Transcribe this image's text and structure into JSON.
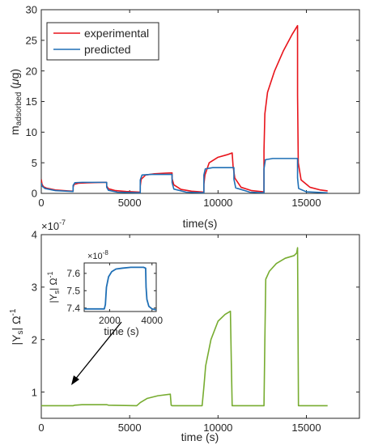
{
  "colors": {
    "experimental": "#e8141b",
    "predicted": "#1f6fb5",
    "admittance": "#77ac30",
    "axis": "#262626",
    "arrow": "#000000"
  },
  "chart_data": [
    {
      "type": "line",
      "ylabel": "m_adsorbed (μg)",
      "xlabel": "time(s)",
      "xlim": [
        0,
        18000
      ],
      "ylim": [
        0,
        30
      ],
      "xticks": [
        0,
        5000,
        10000,
        15000
      ],
      "yticks": [
        0,
        5,
        10,
        15,
        20,
        25,
        30
      ],
      "grid": false,
      "legend": "top-left",
      "series": [
        {
          "name": "experimental",
          "color": "#e8141b",
          "x": [
            0,
            40,
            120,
            300,
            800,
            1500,
            1799,
            1800,
            1850,
            2100,
            2600,
            3200,
            3699,
            3700,
            3800,
            4200,
            4800,
            5400,
            5599,
            5600,
            5650,
            5900,
            6400,
            7000,
            7399,
            7400,
            7500,
            7900,
            8500,
            9100,
            9199,
            9200,
            9260,
            9500,
            10000,
            10500,
            10800,
            10850,
            10950,
            11300,
            11900,
            12599,
            12600,
            12650,
            12800,
            13200,
            13700,
            14200,
            14499,
            14500,
            14540,
            14700,
            15200,
            15800,
            16200
          ],
          "y": [
            2.3,
            1.5,
            1.1,
            0.85,
            0.55,
            0.4,
            0.35,
            1.0,
            1.45,
            1.65,
            1.72,
            1.78,
            1.8,
            1.2,
            0.75,
            0.45,
            0.3,
            0.22,
            0.2,
            1.2,
            2.3,
            3.0,
            3.2,
            3.3,
            3.35,
            2.4,
            1.4,
            0.65,
            0.35,
            0.22,
            0.2,
            1.5,
            3.0,
            5.0,
            5.9,
            6.3,
            6.6,
            4.5,
            2.5,
            1.0,
            0.45,
            0.25,
            7.0,
            13.0,
            16.5,
            20.0,
            23.3,
            26.0,
            27.4,
            16.0,
            5.0,
            2.2,
            1.0,
            0.55,
            0.4
          ]
        },
        {
          "name": "predicted",
          "color": "#1f6fb5",
          "x": [
            0,
            40,
            200,
            800,
            1799,
            1800,
            1900,
            2300,
            3699,
            3700,
            3800,
            4300,
            5599,
            5600,
            5700,
            6200,
            7399,
            7400,
            7500,
            8200,
            9199,
            9200,
            9280,
            9700,
            10899,
            10900,
            11000,
            11800,
            12599,
            12600,
            12680,
            13100,
            14499,
            14500,
            14560,
            15000,
            16200
          ],
          "y": [
            1.7,
            1.2,
            0.8,
            0.45,
            0.3,
            1.3,
            1.75,
            1.8,
            1.8,
            1.0,
            0.5,
            0.2,
            0.1,
            2.2,
            3.0,
            3.1,
            3.1,
            1.8,
            0.7,
            0.2,
            0.1,
            3.0,
            4.0,
            4.2,
            4.2,
            2.3,
            0.9,
            0.2,
            0.1,
            4.0,
            5.5,
            5.7,
            5.7,
            2.5,
            0.8,
            0.25,
            0.1
          ]
        }
      ]
    },
    {
      "type": "line",
      "ylabel": "|Y_s| Ω^-1",
      "xlabel": "time (s)",
      "xlim": [
        0,
        18000
      ],
      "ylim": [
        0.5,
        4
      ],
      "y_exponent_label": "×10^-7",
      "xticks": [
        0,
        5000,
        10000,
        15000
      ],
      "yticks": [
        1,
        2,
        3,
        4
      ],
      "grid": false,
      "series": [
        {
          "color": "#77ac30",
          "x": [
            0,
            1800,
            1900,
            2300,
            3700,
            3800,
            5400,
            5600,
            6000,
            6600,
            7300,
            7350,
            7400,
            9100,
            9200,
            9300,
            9600,
            10000,
            10400,
            10700,
            10750,
            10800,
            12600,
            12650,
            12700,
            12900,
            13300,
            13800,
            14300,
            14450,
            14500,
            14550,
            16200
          ],
          "y": [
            0.74,
            0.74,
            0.75,
            0.76,
            0.76,
            0.75,
            0.74,
            0.8,
            0.88,
            0.93,
            0.96,
            0.75,
            0.74,
            0.74,
            1.1,
            1.5,
            2.0,
            2.35,
            2.48,
            2.54,
            1.6,
            0.74,
            0.74,
            2.0,
            3.15,
            3.3,
            3.45,
            3.55,
            3.6,
            3.65,
            3.75,
            0.74,
            0.74
          ]
        }
      ],
      "annotation": "arrow from inset to ~2500 s"
    },
    {
      "type": "line",
      "role": "inset",
      "ylabel": "|Y_s| Ω^-1",
      "xlabel": "time (s)",
      "xlim": [
        800,
        4200
      ],
      "ylim": [
        7.38,
        7.66
      ],
      "y_exponent_label": "×10^-8",
      "xticks": [
        2000,
        4000
      ],
      "yticks": [
        7.4,
        7.5,
        7.6
      ],
      "series": [
        {
          "color": "#1f6fb5",
          "x": [
            800,
            1750,
            1800,
            1850,
            1950,
            2100,
            2300,
            2600,
            3000,
            3600,
            3700,
            3720,
            3760,
            3850,
            4000,
            4200
          ],
          "y": [
            7.395,
            7.395,
            7.42,
            7.52,
            7.58,
            7.61,
            7.625,
            7.63,
            7.635,
            7.635,
            7.63,
            7.52,
            7.45,
            7.41,
            7.395,
            7.39
          ]
        }
      ]
    }
  ]
}
